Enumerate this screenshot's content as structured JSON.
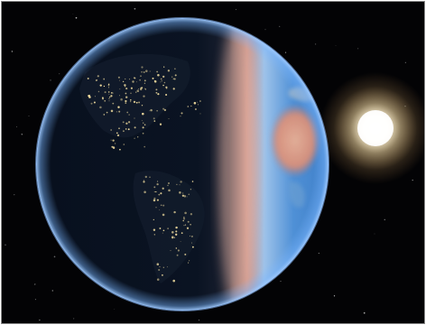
{
  "scene": {
    "subject": "earth-day-night-terminator",
    "icons": [
      "planet-earth-icon",
      "sun-icon"
    ],
    "colors": {
      "space": "#030305",
      "ocean_day": "#3f7fc8",
      "ocean_night": "#0a1424",
      "atmosphere_rim": "#7ab6ff",
      "terminator_glow": "#e9b6a6",
      "land_day": "#e7a27f",
      "city_lights": "#ffe9a6",
      "sun_core": "#ffffff",
      "sun_halo": "#ffe7b0"
    }
  }
}
